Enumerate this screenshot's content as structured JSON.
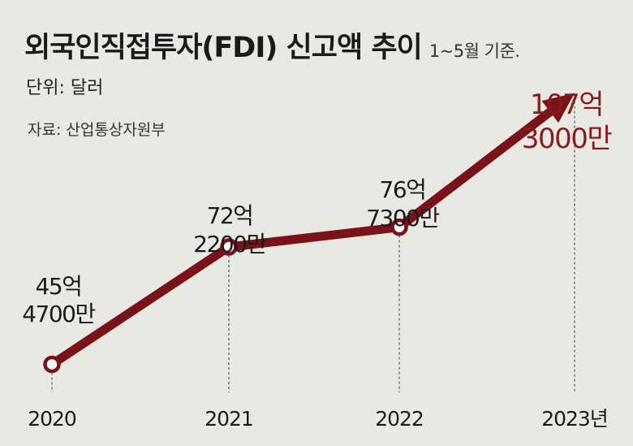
{
  "header": {
    "title": "외국인직접투자(FDI) 신고액 추이",
    "subtitle": "1~5월 기준.",
    "unit": "단위: 달러",
    "source": "자료: 산업통상자원부"
  },
  "chart_data": {
    "type": "line",
    "title": "외국인직접투자(FDI) 신고액 추이",
    "ylabel": "",
    "xlabel": "",
    "categories": [
      "2020",
      "2021",
      "2022",
      "2023년"
    ],
    "values": [
      4547,
      7222,
      7673,
      10730
    ],
    "value_unit": "백만 달러",
    "data_labels": [
      [
        "45억",
        "4700만"
      ],
      [
        "72억",
        "2200만"
      ],
      [
        "76억",
        "7300만"
      ],
      [
        "107억",
        "3000만"
      ]
    ],
    "ylim": [
      3000,
      11000
    ],
    "grid": false,
    "colors": {
      "line": "#7a1219",
      "highlight_label": "#8b1a1f",
      "label": "#1a1a1a"
    }
  }
}
